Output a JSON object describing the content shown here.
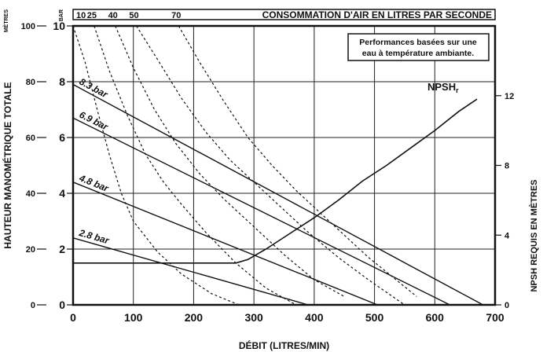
{
  "chart_data": {
    "type": "line",
    "title": "",
    "xlabel": "DÉBIT (LITRES/MIN)",
    "ylabel_left_meters": "HAUTEUR MANOMÉTRIQUE TOTALE",
    "ylabel_right": "NPSH REQUIS EN MÈTRES",
    "top_axis_label": "CONSOMMATION D'AIR EN LITRES PAR SECONDE",
    "top_left_unit_meters": "MÈTRES",
    "top_left_unit_bar": "BAR",
    "note": [
      "Performances basées sur une",
      "eau à température ambiante."
    ],
    "xlim": [
      0,
      700
    ],
    "x_ticks": [
      0,
      100,
      200,
      300,
      400,
      500,
      600,
      700
    ],
    "y_meters_lim": [
      0,
      100
    ],
    "y_meters_ticks": [
      0,
      20,
      40,
      60,
      80,
      100
    ],
    "y_bar_lim": [
      0,
      10
    ],
    "y_bar_ticks": [
      0,
      2,
      4,
      6,
      8,
      10
    ],
    "y_npsh_lim": [
      0,
      16
    ],
    "y_npsh_ticks": [
      0,
      4,
      8,
      12
    ],
    "air_ticks": [
      "10",
      "25",
      "40",
      "50",
      "70"
    ],
    "grid": true,
    "pressure_series": [
      {
        "name": "8.3 bar",
        "x": [
          0,
          680
        ],
        "y_bar": [
          7.9,
          0
        ]
      },
      {
        "name": "6.9 bar",
        "x": [
          0,
          625
        ],
        "y_bar": [
          6.7,
          0
        ]
      },
      {
        "name": "4.8 bar",
        "x": [
          0,
          505
        ],
        "y_bar": [
          4.4,
          0
        ]
      },
      {
        "name": "2.8 bar",
        "x": [
          0,
          390
        ],
        "y_bar": [
          2.4,
          0
        ]
      }
    ],
    "air_consumption_curves": [
      {
        "name": "10",
        "x": [
          0,
          20,
          40,
          60,
          80,
          100,
          140,
          180,
          230,
          275
        ],
        "y_bar": [
          10,
          8.7,
          7.0,
          5.4,
          4.0,
          3.0,
          1.9,
          1.1,
          0.4,
          0
        ]
      },
      {
        "name": "25",
        "x": [
          35,
          60,
          90,
          120,
          150,
          180,
          220,
          270,
          320,
          370
        ],
        "y_bar": [
          10,
          8.4,
          6.8,
          5.4,
          4.4,
          3.6,
          2.6,
          1.5,
          0.6,
          0
        ]
      },
      {
        "name": "40",
        "x": [
          70,
          100,
          135,
          170,
          210,
          250,
          300,
          350,
          400,
          450
        ],
        "y_bar": [
          10,
          8.5,
          7.0,
          5.8,
          4.7,
          3.8,
          2.8,
          1.8,
          0.9,
          0.3
        ]
      },
      {
        "name": "50",
        "x": [
          105,
          140,
          180,
          220,
          260,
          300,
          340,
          390,
          440,
          490,
          550
        ],
        "y_bar": [
          10,
          8.8,
          7.4,
          6.2,
          5.2,
          4.4,
          3.6,
          2.6,
          1.7,
          0.9,
          0
        ]
      },
      {
        "name": "70",
        "x": [
          175,
          210,
          250,
          290,
          330,
          370,
          410,
          450,
          490,
          530,
          570
        ],
        "y_bar": [
          10,
          8.7,
          7.3,
          6.0,
          5.0,
          4.1,
          3.3,
          2.5,
          1.7,
          1.0,
          0.3
        ]
      }
    ],
    "npsh_curve": {
      "name": "NPSHr",
      "x": [
        0,
        270,
        290,
        320,
        360,
        400,
        440,
        480,
        520,
        560,
        600,
        640,
        670
      ],
      "y_npsh": [
        2.4,
        2.4,
        2.6,
        3.2,
        4.1,
        5.0,
        6.0,
        7.1,
        8.0,
        9.0,
        10.0,
        11.1,
        11.8
      ]
    }
  }
}
